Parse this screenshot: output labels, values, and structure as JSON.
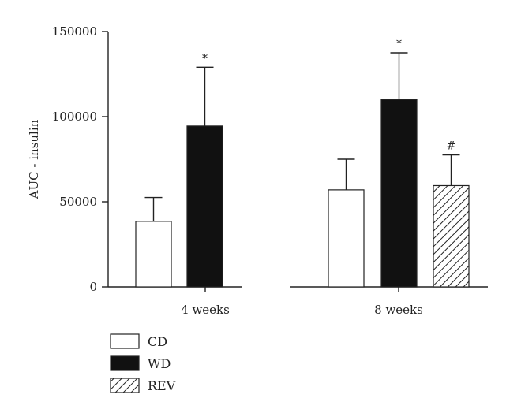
{
  "chart_data": {
    "type": "bar",
    "ylabel": "AUC - insulin",
    "ylim": [
      0,
      150000
    ],
    "yticks": [
      "0",
      "50000",
      "100000",
      "150000"
    ],
    "yticks_values": [
      0,
      50000,
      100000,
      150000
    ],
    "groups": [
      {
        "label": "4 weeks",
        "bars": [
          {
            "series": "CD",
            "value": 38500,
            "error": 14000,
            "annotation": ""
          },
          {
            "series": "WD",
            "value": 94500,
            "error": 34500,
            "annotation": "*"
          }
        ]
      },
      {
        "label": "8 weeks",
        "bars": [
          {
            "series": "CD",
            "value": 57000,
            "error": 18000,
            "annotation": ""
          },
          {
            "series": "WD",
            "value": 110000,
            "error": 27500,
            "annotation": "*"
          },
          {
            "series": "REV",
            "value": 59500,
            "error": 18000,
            "annotation": "#"
          }
        ]
      }
    ],
    "series": [
      {
        "name": "CD",
        "fill": "#ffffff"
      },
      {
        "name": "WD",
        "fill": "#111111"
      },
      {
        "name": "REV",
        "fill": "hatched"
      }
    ],
    "legend_position": "bottom-left"
  }
}
